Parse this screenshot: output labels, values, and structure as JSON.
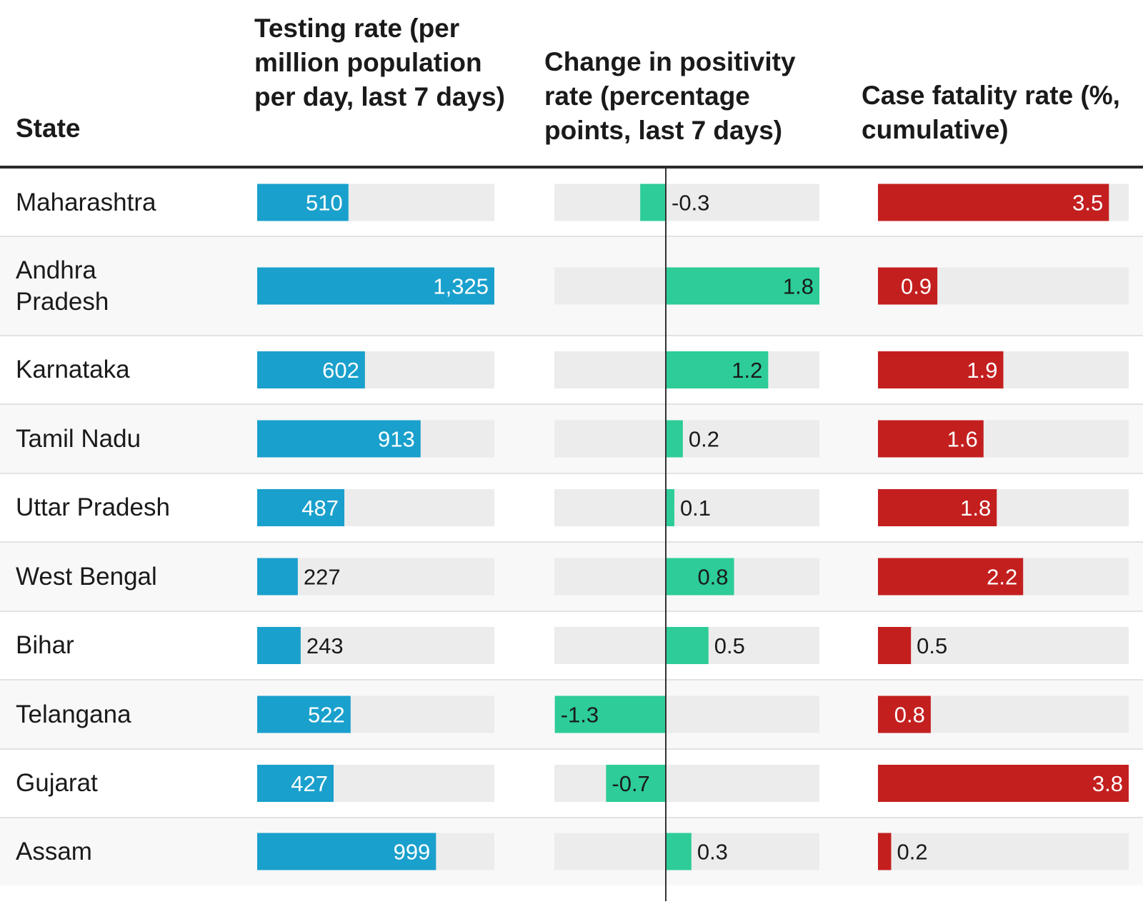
{
  "headers": {
    "state": "State",
    "testing": "Testing rate (per million population per day, last 7 days)",
    "positivity": "Change in positivity rate (percentage points, last 7 days)",
    "cfr": "Case fatality rate (%, cumulative)"
  },
  "colors": {
    "testing": "#1aa0cc",
    "positivity": "#2dcc98",
    "cfr": "#c41f1f",
    "track": "#ececec",
    "alt_row": "#f8f8f8",
    "rule": "#2a2a2a"
  },
  "chart_data": {
    "type": "table",
    "categories": [
      "Maharashtra",
      "Andhra Pradesh",
      "Karnataka",
      "Tamil Nadu",
      "Uttar Pradesh",
      "West Bengal",
      "Bihar",
      "Telangana",
      "Gujarat",
      "Assam"
    ],
    "series": [
      {
        "name": "Testing rate (per million population per day, last 7 days)",
        "values": [
          510,
          1325,
          602,
          913,
          487,
          227,
          243,
          522,
          427,
          999
        ],
        "labels": [
          "510",
          "1,325",
          "602",
          "913",
          "487",
          "227",
          "243",
          "522",
          "427",
          "999"
        ],
        "domain": [
          0,
          1325
        ]
      },
      {
        "name": "Change in positivity rate (percentage points, last 7 days)",
        "values": [
          -0.3,
          1.8,
          1.2,
          0.2,
          0.1,
          0.8,
          0.5,
          -1.3,
          -0.7,
          0.3
        ],
        "labels": [
          "-0.3",
          "1.8",
          "1.2",
          "0.2",
          "0.1",
          "0.8",
          "0.5",
          "-1.3",
          "-0.7",
          "0.3"
        ],
        "domain": [
          -1.3,
          1.8
        ]
      },
      {
        "name": "Case fatality rate (%, cumulative)",
        "values": [
          3.5,
          0.9,
          1.9,
          1.6,
          1.8,
          2.2,
          0.5,
          0.8,
          3.8,
          0.2
        ],
        "labels": [
          "3.5",
          "0.9",
          "1.9",
          "1.6",
          "1.8",
          "2.2",
          "0.5",
          "0.8",
          "3.8",
          "0.2"
        ],
        "domain": [
          0,
          3.8
        ]
      }
    ]
  }
}
